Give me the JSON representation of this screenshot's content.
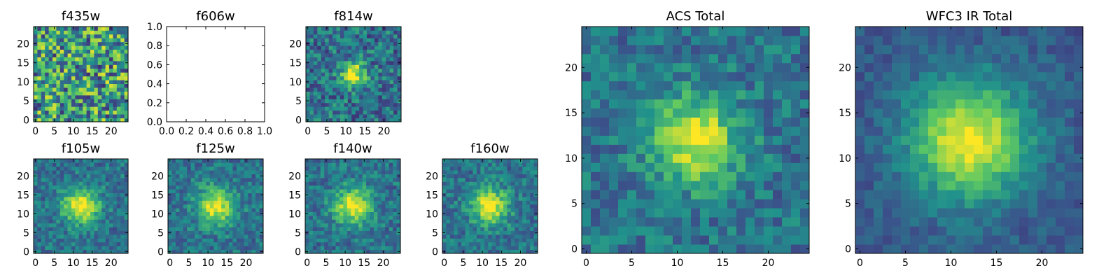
{
  "chart_data": [
    {
      "id": "f435w",
      "type": "heatmap",
      "title": "f435w",
      "xlim": [
        0,
        24
      ],
      "ylim": [
        0,
        24
      ],
      "xticks": [
        "0",
        "5",
        "10",
        "15",
        "20"
      ],
      "yticks": [
        "0",
        "5",
        "10",
        "15",
        "20"
      ],
      "grid": false,
      "pattern": "noise"
    },
    {
      "id": "f606w",
      "type": "empty",
      "title": "f606w",
      "xlim": [
        0.0,
        1.0
      ],
      "ylim": [
        0.0,
        1.0
      ],
      "xticks": [
        "0.0",
        "0.2",
        "0.4",
        "0.6",
        "0.8",
        "1.0"
      ],
      "yticks": [
        "0.0",
        "0.2",
        "0.4",
        "0.6",
        "0.8",
        "1.0"
      ],
      "grid": false
    },
    {
      "id": "f814w",
      "type": "heatmap",
      "title": "f814w",
      "xlim": [
        0,
        24
      ],
      "ylim": [
        0,
        24
      ],
      "xticks": [
        "0",
        "5",
        "10",
        "15",
        "20"
      ],
      "yticks": [
        "0",
        "5",
        "10",
        "15",
        "20"
      ],
      "grid": false,
      "pattern": "compact-source",
      "peak_at": [
        12,
        12
      ]
    },
    {
      "id": "f105w",
      "type": "heatmap",
      "title": "f105w",
      "xlim": [
        0,
        24
      ],
      "ylim": [
        0,
        24
      ],
      "xticks": [
        "0",
        "5",
        "10",
        "15",
        "20"
      ],
      "yticks": [
        "0",
        "5",
        "10",
        "15",
        "20"
      ],
      "grid": false,
      "pattern": "source",
      "peak_at": [
        12,
        12
      ]
    },
    {
      "id": "f125w",
      "type": "heatmap",
      "title": "f125w",
      "xlim": [
        0,
        24
      ],
      "ylim": [
        0,
        24
      ],
      "xticks": [
        "0",
        "5",
        "10",
        "15",
        "20"
      ],
      "yticks": [
        "0",
        "5",
        "10",
        "15",
        "20"
      ],
      "grid": false,
      "pattern": "source",
      "peak_at": [
        12,
        12
      ]
    },
    {
      "id": "f140w",
      "type": "heatmap",
      "title": "f140w",
      "xlim": [
        0,
        24
      ],
      "ylim": [
        0,
        24
      ],
      "xticks": [
        "0",
        "5",
        "10",
        "15",
        "20"
      ],
      "yticks": [
        "0",
        "5",
        "10",
        "15",
        "20"
      ],
      "grid": false,
      "pattern": "source",
      "peak_at": [
        12,
        12
      ]
    },
    {
      "id": "f160w",
      "type": "heatmap",
      "title": "f160w",
      "xlim": [
        0,
        24
      ],
      "ylim": [
        0,
        24
      ],
      "xticks": [
        "0",
        "5",
        "10",
        "15",
        "20"
      ],
      "yticks": [
        "0",
        "5",
        "10",
        "15",
        "20"
      ],
      "grid": false,
      "pattern": "source",
      "peak_at": [
        12,
        12
      ]
    },
    {
      "id": "acs_total",
      "type": "heatmap",
      "title": "ACS Total",
      "xlim": [
        0,
        24
      ],
      "ylim": [
        0,
        24
      ],
      "xticks": [
        "0",
        "5",
        "10",
        "15",
        "20"
      ],
      "yticks": [
        "0",
        "5",
        "10",
        "15",
        "20"
      ],
      "grid": false,
      "pattern": "source",
      "peak_at": [
        12,
        12
      ]
    },
    {
      "id": "wfc3_ir_total",
      "type": "heatmap",
      "title": "WFC3 IR Total",
      "xlim": [
        0,
        24
      ],
      "ylim": [
        0,
        24
      ],
      "xticks": [
        "0",
        "5",
        "10",
        "15",
        "20"
      ],
      "yticks": [
        "0",
        "5",
        "10",
        "15",
        "20"
      ],
      "grid": false,
      "pattern": "smooth-source",
      "peak_at": [
        12,
        12
      ]
    }
  ],
  "colormap": [
    "#440154",
    "#3b528b",
    "#21918c",
    "#5ec962",
    "#fde725"
  ]
}
